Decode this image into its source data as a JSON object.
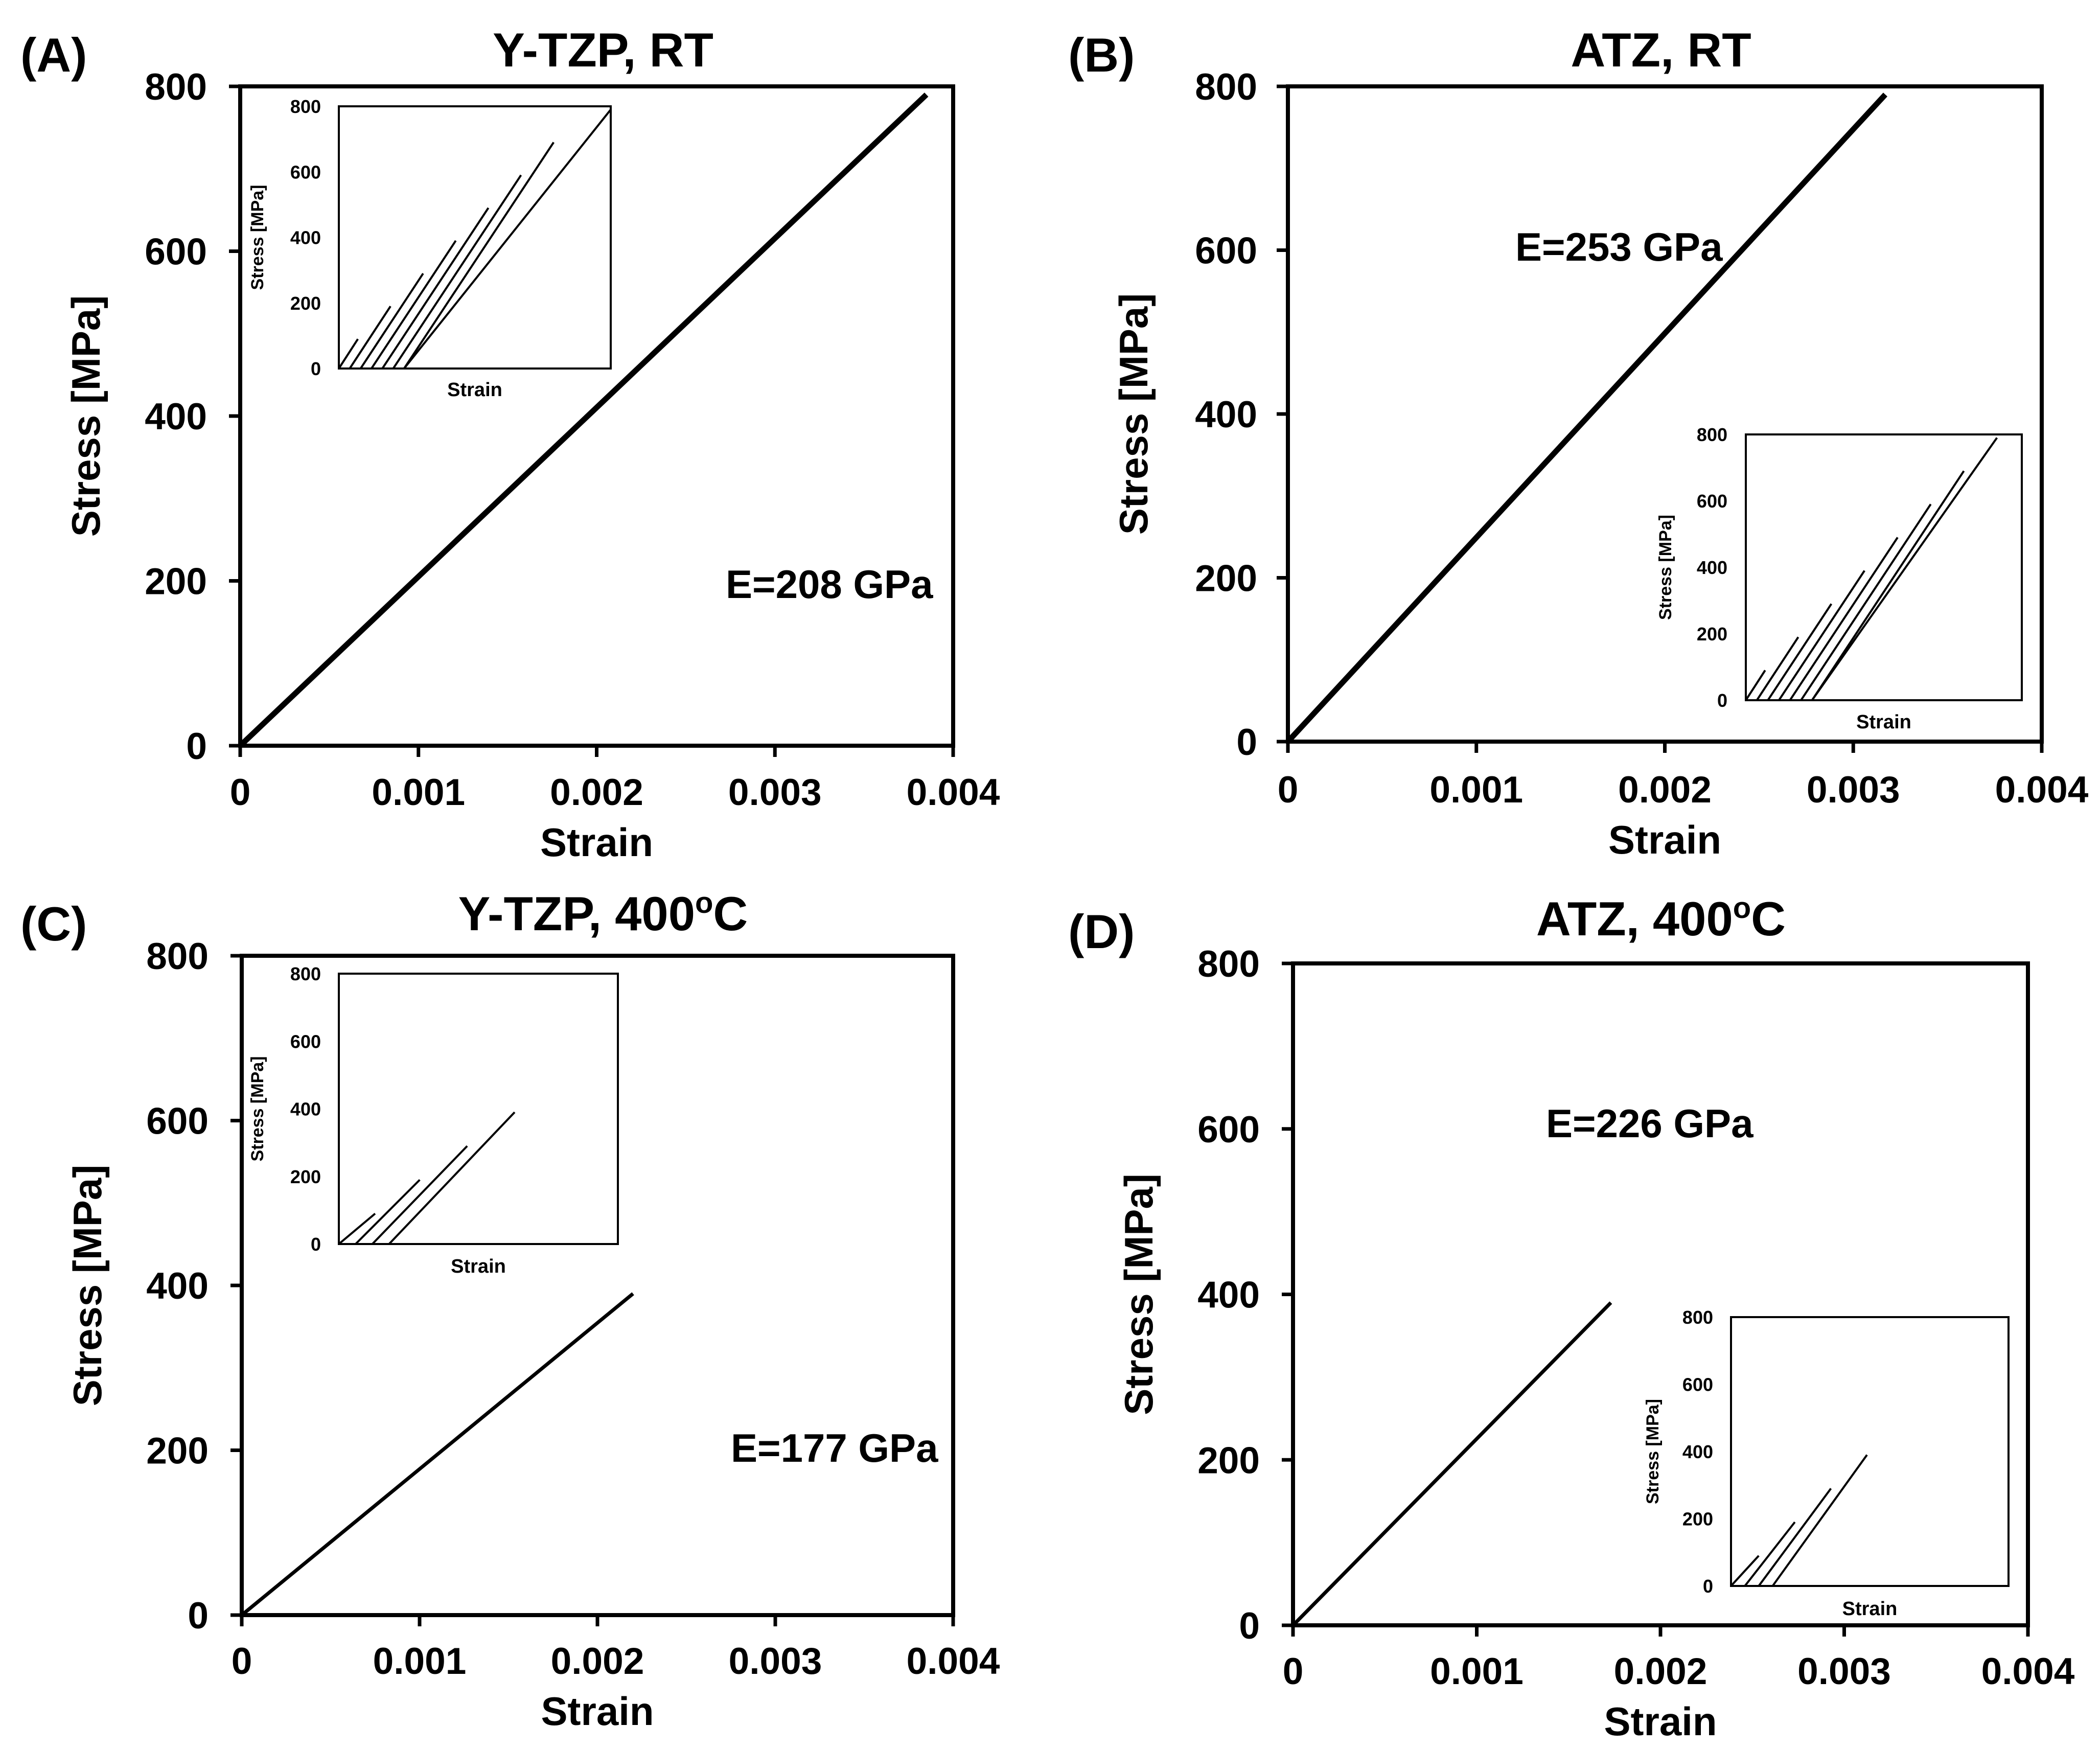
{
  "figure": {
    "panels": [
      {
        "panel_label": "(A)",
        "title": "Y-TZP, RT",
        "xlabel": "Strain",
        "ylabel": "Stress [MPa]",
        "annotation": "E=208 GPa",
        "xticks": [
          "0",
          "0.001",
          "0.002",
          "0.003",
          "0.004"
        ],
        "yticks": [
          "0",
          "200",
          "400",
          "600",
          "800"
        ],
        "inset": {
          "xlabel": "Strain",
          "ylabel": "Stress [MPa]",
          "yticks": [
            "0",
            "200",
            "400",
            "600",
            "800"
          ]
        }
      },
      {
        "panel_label": "(B)",
        "title": "ATZ, RT",
        "xlabel": "Strain",
        "ylabel": "Stress [MPa]",
        "annotation": "E=253 GPa",
        "xticks": [
          "0",
          "0.001",
          "0.002",
          "0.003",
          "0.004"
        ],
        "yticks": [
          "0",
          "200",
          "400",
          "600",
          "800"
        ],
        "inset": {
          "xlabel": "Strain",
          "ylabel": "Stress [MPa]",
          "yticks": [
            "0",
            "200",
            "400",
            "600",
            "800"
          ]
        }
      },
      {
        "panel_label": "(C)",
        "title": "Y-TZP, 400",
        "title_sup": "o",
        "title_tail": "C",
        "xlabel": "Strain",
        "ylabel": "Stress [MPa]",
        "annotation": "E=177 GPa",
        "xticks": [
          "0",
          "0.001",
          "0.002",
          "0.003",
          "0.004"
        ],
        "yticks": [
          "0",
          "200",
          "400",
          "600",
          "800"
        ],
        "inset": {
          "xlabel": "Strain",
          "ylabel": "Stress [MPa]",
          "yticks": [
            "0",
            "200",
            "400",
            "600",
            "800"
          ]
        }
      },
      {
        "panel_label": "(D)",
        "title": "ATZ, 400",
        "title_sup": "o",
        "title_tail": "C",
        "xlabel": "Strain",
        "ylabel": "Stress [MPa]",
        "annotation": "E=226 GPa",
        "xticks": [
          "0",
          "0.001",
          "0.002",
          "0.003",
          "0.004"
        ],
        "yticks": [
          "0",
          "200",
          "400",
          "600",
          "800"
        ],
        "inset": {
          "xlabel": "Strain",
          "ylabel": "Stress [MPa]",
          "yticks": [
            "0",
            "200",
            "400",
            "600",
            "800"
          ]
        }
      }
    ]
  },
  "chart_data": [
    {
      "type": "line",
      "title": "Y-TZP, RT",
      "xlabel": "Strain",
      "ylabel": "Stress [MPa]",
      "xlim": [
        0,
        0.004
      ],
      "ylim": [
        0,
        800
      ],
      "annotation": "E=208 GPa",
      "series": [
        {
          "x": [
            0,
            0.00385
          ],
          "y": [
            0,
            790
          ]
        }
      ],
      "inset": {
        "xlabel": "Strain",
        "ylabel": "Stress [MPa]",
        "ylim": [
          0,
          800
        ],
        "lines": [
          {
            "x": [
              0.0,
              0.07
            ],
            "y": [
              0,
              90
            ]
          },
          {
            "x": [
              0.04,
              0.19
            ],
            "y": [
              0,
              190
            ]
          },
          {
            "x": [
              0.08,
              0.31
            ],
            "y": [
              0,
              290
            ]
          },
          {
            "x": [
              0.12,
              0.43
            ],
            "y": [
              0,
              390
            ]
          },
          {
            "x": [
              0.16,
              0.55
            ],
            "y": [
              0,
              490
            ]
          },
          {
            "x": [
              0.2,
              0.67
            ],
            "y": [
              0,
              590
            ]
          },
          {
            "x": [
              0.24,
              0.79
            ],
            "y": [
              0,
              690
            ]
          },
          {
            "x": [
              0.24,
              1.0
            ],
            "y": [
              0,
              790
            ]
          }
        ]
      }
    },
    {
      "type": "line",
      "title": "ATZ, RT",
      "xlabel": "Strain",
      "ylabel": "Stress [MPa]",
      "xlim": [
        0,
        0.004
      ],
      "ylim": [
        0,
        800
      ],
      "annotation": "E=253 GPa",
      "series": [
        {
          "x": [
            0,
            0.00317
          ],
          "y": [
            0,
            790
          ]
        }
      ],
      "inset": {
        "xlabel": "Strain",
        "ylabel": "Stress [MPa]",
        "ylim": [
          0,
          800
        ],
        "lines": [
          {
            "x": [
              0.0,
              0.07
            ],
            "y": [
              0,
              90
            ]
          },
          {
            "x": [
              0.04,
              0.19
            ],
            "y": [
              0,
              190
            ]
          },
          {
            "x": [
              0.08,
              0.31
            ],
            "y": [
              0,
              290
            ]
          },
          {
            "x": [
              0.12,
              0.43
            ],
            "y": [
              0,
              390
            ]
          },
          {
            "x": [
              0.16,
              0.55
            ],
            "y": [
              0,
              490
            ]
          },
          {
            "x": [
              0.2,
              0.67
            ],
            "y": [
              0,
              590
            ]
          },
          {
            "x": [
              0.24,
              0.79
            ],
            "y": [
              0,
              690
            ]
          },
          {
            "x": [
              0.24,
              0.91
            ],
            "y": [
              0,
              790
            ]
          }
        ]
      }
    },
    {
      "type": "line",
      "title": "Y-TZP, 400oC",
      "xlabel": "Strain",
      "ylabel": "Stress [MPa]",
      "xlim": [
        0,
        0.004
      ],
      "ylim": [
        0,
        800
      ],
      "annotation": "E=177 GPa",
      "series": [
        {
          "x": [
            0,
            0.0022
          ],
          "y": [
            0,
            390
          ]
        }
      ],
      "inset": {
        "xlabel": "Strain",
        "ylabel": "Stress [MPa]",
        "ylim": [
          0,
          800
        ],
        "lines": [
          {
            "x": [
              0.0,
              0.13
            ],
            "y": [
              0,
              90
            ]
          },
          {
            "x": [
              0.06,
              0.29
            ],
            "y": [
              0,
              190
            ]
          },
          {
            "x": [
              0.12,
              0.46
            ],
            "y": [
              0,
              290
            ]
          },
          {
            "x": [
              0.18,
              0.63
            ],
            "y": [
              0,
              390
            ]
          }
        ]
      }
    },
    {
      "type": "line",
      "title": "ATZ, 400oC",
      "xlabel": "Strain",
      "ylabel": "Stress [MPa]",
      "xlim": [
        0,
        0.004
      ],
      "ylim": [
        0,
        800
      ],
      "annotation": "E=226 GPa",
      "series": [
        {
          "x": [
            0,
            0.00173
          ],
          "y": [
            0,
            390
          ]
        }
      ],
      "inset": {
        "xlabel": "Strain",
        "ylabel": "Stress [MPa]",
        "ylim": [
          0,
          800
        ],
        "lines": [
          {
            "x": [
              0.0,
              0.1
            ],
            "y": [
              0,
              90
            ]
          },
          {
            "x": [
              0.05,
              0.23
            ],
            "y": [
              0,
              190
            ]
          },
          {
            "x": [
              0.1,
              0.36
            ],
            "y": [
              0,
              290
            ]
          },
          {
            "x": [
              0.15,
              0.49
            ],
            "y": [
              0,
              390
            ]
          }
        ]
      }
    }
  ]
}
